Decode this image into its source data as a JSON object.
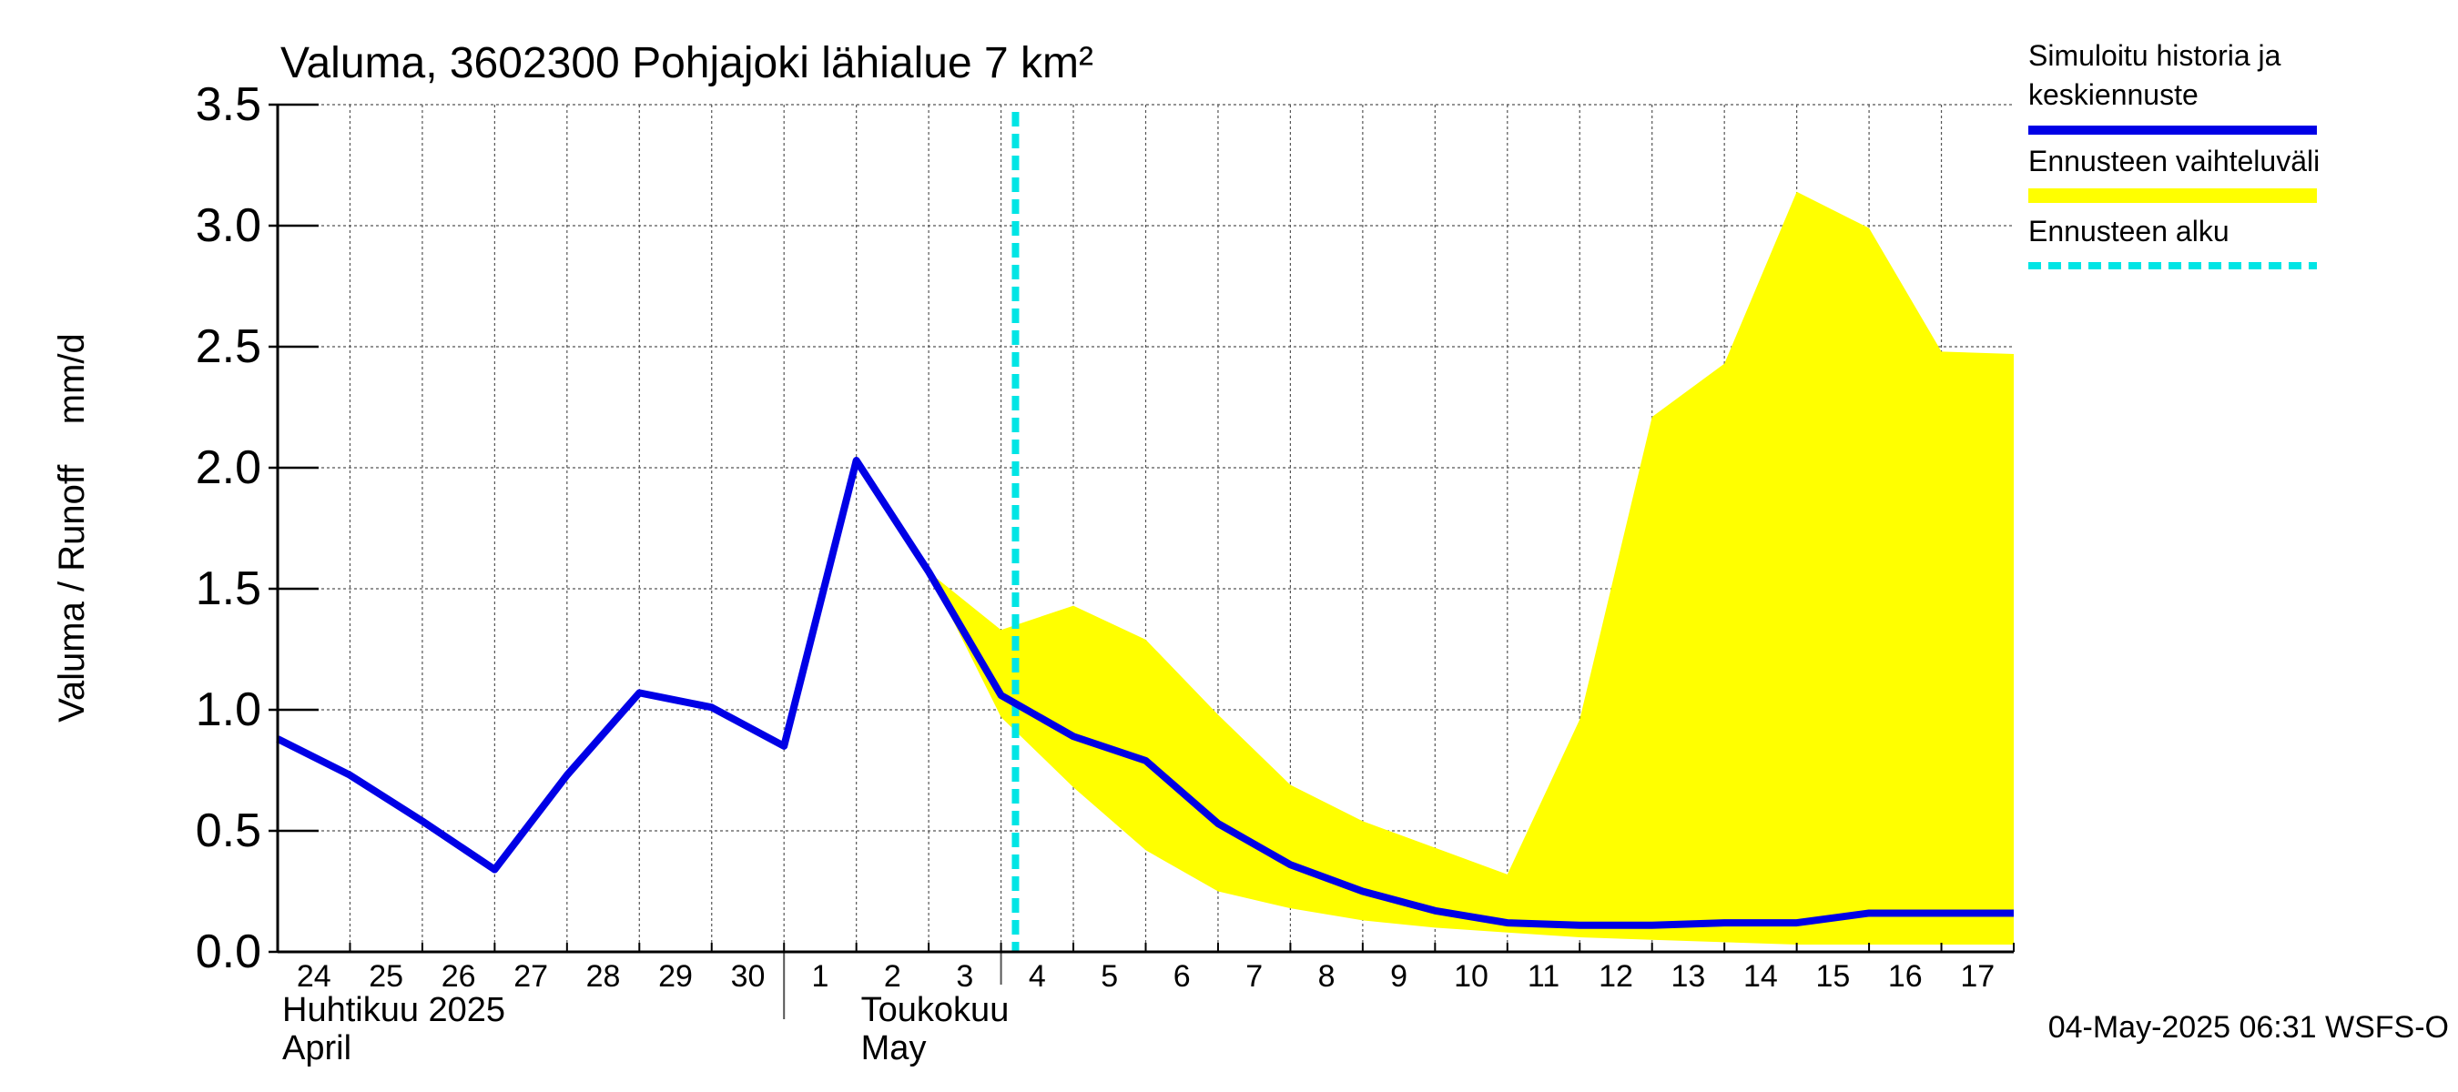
{
  "chart_data": {
    "type": "line",
    "title": "Valuma, 3602300 Pohjajoki lähialue 7 km²",
    "ylabel": "Valuma / Runoff    mm/d",
    "ylim": [
      0,
      3.5
    ],
    "yticks": [
      {
        "value": 0.0,
        "label": "0.0"
      },
      {
        "value": 0.5,
        "label": "0.5"
      },
      {
        "value": 1.0,
        "label": "1.0"
      },
      {
        "value": 1.5,
        "label": "1.5"
      },
      {
        "value": 2.0,
        "label": "2.0"
      },
      {
        "value": 2.5,
        "label": "2.5"
      },
      {
        "value": 3.0,
        "label": "3.0"
      },
      {
        "value": 3.5,
        "label": "3.5"
      }
    ],
    "xlim": [
      0,
      24
    ],
    "day_labels": [
      "24",
      "25",
      "26",
      "27",
      "28",
      "29",
      "30",
      "1",
      "2",
      "3",
      "4",
      "5",
      "6",
      "7",
      "8",
      "9",
      "10",
      "11",
      "12",
      "13",
      "14",
      "15",
      "16",
      "17"
    ],
    "month_labels": [
      {
        "line1": "Huhtikuu  2025",
        "line2": "April",
        "day_index": 0
      },
      {
        "line1": "Toukokuu",
        "line2": "May",
        "day_index": 8
      }
    ],
    "month_separator_day_index": 7,
    "forecast_start_x": 10.2,
    "series": [
      {
        "name": "Simuloitu historia ja keskiennuste",
        "color": "#0000e6",
        "x": [
          0,
          1,
          2,
          3,
          4,
          5,
          6,
          7,
          8,
          9,
          10,
          11,
          12,
          13,
          14,
          15,
          16,
          17,
          18,
          19,
          20,
          21,
          22,
          23,
          24
        ],
        "values": [
          0.88,
          0.73,
          0.54,
          0.34,
          0.73,
          1.07,
          1.01,
          0.85,
          2.03,
          1.57,
          1.06,
          0.89,
          0.79,
          0.53,
          0.36,
          0.25,
          0.17,
          0.12,
          0.11,
          0.11,
          0.12,
          0.12,
          0.16,
          0.16,
          0.16
        ]
      }
    ],
    "band": {
      "name": "Ennusteen vaihteluväli",
      "color": "#ffff00",
      "x": [
        9,
        10,
        11,
        12,
        13,
        14,
        15,
        16,
        17,
        18,
        19,
        20,
        21,
        22,
        23,
        24
      ],
      "upper": [
        1.57,
        1.33,
        1.43,
        1.29,
        0.98,
        0.69,
        0.54,
        0.43,
        0.32,
        0.96,
        2.21,
        2.43,
        3.14,
        2.99,
        2.48,
        2.47
      ],
      "lower": [
        1.57,
        0.97,
        0.68,
        0.42,
        0.25,
        0.18,
        0.13,
        0.1,
        0.08,
        0.06,
        0.05,
        0.04,
        0.03,
        0.03,
        0.03,
        0.03
      ]
    },
    "legend": [
      {
        "label_line1": "Simuloitu historia ja",
        "label_line2": "keskiennuste",
        "color": "#0000e6",
        "style": "solid"
      },
      {
        "label_line1": "Ennusteen vaihteluväli",
        "label_line2": "",
        "color": "#ffff00",
        "style": "thick"
      },
      {
        "label_line1": "Ennusteen alku",
        "label_line2": "",
        "color": "#00e5e5",
        "style": "dashed"
      }
    ],
    "footer": "04-May-2025 06:31 WSFS-O"
  }
}
